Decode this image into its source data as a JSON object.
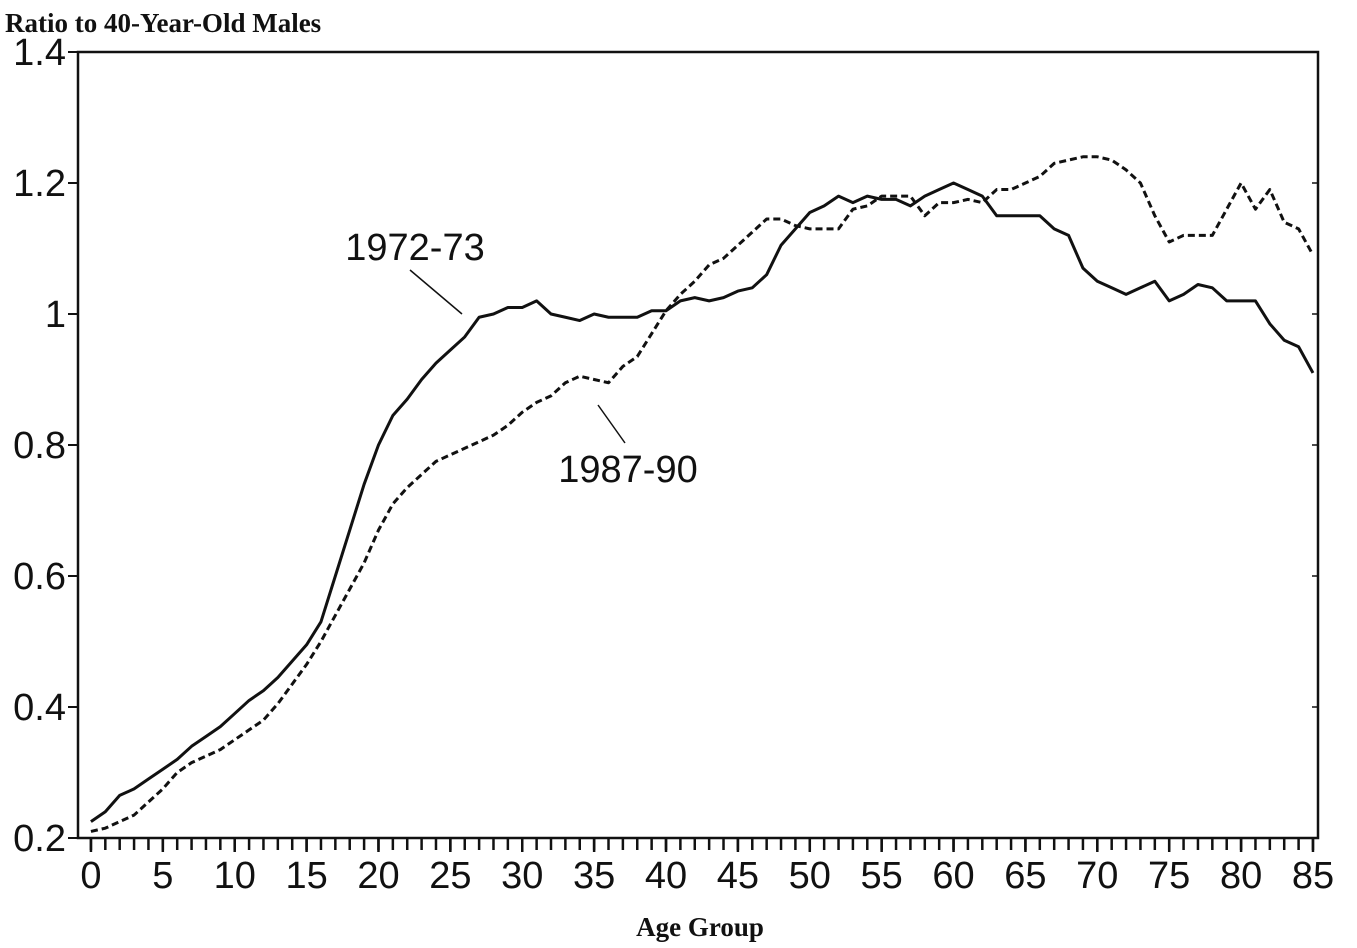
{
  "chart_data": {
    "type": "line",
    "y_axis_label": "Ratio to 40-Year-Old Males",
    "x_axis_label": "Age Group",
    "x": [
      0,
      1,
      2,
      3,
      4,
      5,
      6,
      7,
      8,
      9,
      10,
      11,
      12,
      13,
      14,
      15,
      16,
      17,
      18,
      19,
      20,
      21,
      22,
      23,
      24,
      25,
      26,
      27,
      28,
      29,
      30,
      31,
      32,
      33,
      34,
      35,
      36,
      37,
      38,
      39,
      40,
      41,
      42,
      43,
      44,
      45,
      46,
      47,
      48,
      49,
      50,
      51,
      52,
      53,
      54,
      55,
      56,
      57,
      58,
      59,
      60,
      61,
      62,
      63,
      64,
      65,
      66,
      67,
      68,
      69,
      70,
      71,
      72,
      73,
      74,
      75,
      76,
      77,
      78,
      79,
      80,
      81,
      82,
      83,
      84,
      85
    ],
    "series": [
      {
        "name": "1972-73",
        "color": "#111111",
        "dash": false,
        "values": [
          0.225,
          0.24,
          0.265,
          0.275,
          0.29,
          0.305,
          0.32,
          0.34,
          0.355,
          0.37,
          0.39,
          0.41,
          0.425,
          0.445,
          0.47,
          0.495,
          0.53,
          0.6,
          0.67,
          0.74,
          0.8,
          0.845,
          0.87,
          0.9,
          0.925,
          0.945,
          0.965,
          0.995,
          1.0,
          1.01,
          1.01,
          1.02,
          1.0,
          0.995,
          0.99,
          1.0,
          0.995,
          0.995,
          0.995,
          1.005,
          1.005,
          1.02,
          1.025,
          1.02,
          1.025,
          1.035,
          1.04,
          1.06,
          1.105,
          1.13,
          1.155,
          1.165,
          1.18,
          1.17,
          1.18,
          1.175,
          1.175,
          1.165,
          1.18,
          1.19,
          1.2,
          1.19,
          1.18,
          1.15,
          1.15,
          1.15,
          1.15,
          1.13,
          1.12,
          1.07,
          1.05,
          1.04,
          1.03,
          1.04,
          1.05,
          1.02,
          1.03,
          1.045,
          1.04,
          1.02,
          1.02,
          1.02,
          0.985,
          0.96,
          0.95,
          0.91
        ]
      },
      {
        "name": "1987-90",
        "color": "#111111",
        "dash": true,
        "values": [
          0.21,
          0.215,
          0.225,
          0.235,
          0.255,
          0.275,
          0.3,
          0.315,
          0.325,
          0.335,
          0.35,
          0.365,
          0.38,
          0.405,
          0.435,
          0.465,
          0.5,
          0.54,
          0.58,
          0.62,
          0.67,
          0.71,
          0.735,
          0.755,
          0.775,
          0.785,
          0.795,
          0.805,
          0.815,
          0.83,
          0.85,
          0.865,
          0.875,
          0.895,
          0.905,
          0.9,
          0.895,
          0.92,
          0.935,
          0.97,
          1.005,
          1.03,
          1.05,
          1.075,
          1.085,
          1.105,
          1.125,
          1.145,
          1.145,
          1.135,
          1.13,
          1.13,
          1.13,
          1.16,
          1.165,
          1.18,
          1.18,
          1.18,
          1.15,
          1.17,
          1.17,
          1.175,
          1.17,
          1.19,
          1.19,
          1.2,
          1.21,
          1.23,
          1.235,
          1.24,
          1.24,
          1.235,
          1.22,
          1.2,
          1.15,
          1.11,
          1.12,
          1.12,
          1.12,
          1.16,
          1.2,
          1.16,
          1.19,
          1.14,
          1.13,
          1.09
        ]
      }
    ],
    "xlim": [
      -0.9,
      85.35
    ],
    "ylim": [
      0.2,
      1.4
    ],
    "xticks": [
      0,
      5,
      10,
      15,
      20,
      25,
      30,
      35,
      40,
      45,
      50,
      55,
      60,
      65,
      70,
      75,
      80,
      85
    ],
    "yticks": [
      0.2,
      0.4,
      0.6,
      0.8,
      1,
      1.2,
      1.4
    ]
  }
}
